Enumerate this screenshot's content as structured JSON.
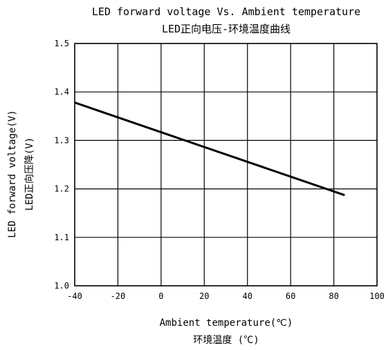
{
  "chart_data": {
    "type": "line",
    "title": "LED forward voltage Vs. Ambient temperature",
    "subtitle": "LED正向电压-环境温度曲线",
    "xlabel": "Ambient temperature(℃)",
    "xlabel_cn": "环境温度 (℃)",
    "ylabel": "LED forward voltage(V)",
    "ylabel_cn": "LED正向压降(V)",
    "xlim": [
      -40,
      100
    ],
    "ylim": [
      1.0,
      1.5
    ],
    "xticks": [
      -40,
      -20,
      0,
      20,
      40,
      60,
      80,
      100
    ],
    "yticks": [
      1.0,
      1.1,
      1.2,
      1.3,
      1.4,
      1.5
    ],
    "xtick_labels": [
      "-40",
      "-20",
      "0",
      "20",
      "40",
      "60",
      "80",
      "100"
    ],
    "ytick_labels": [
      "1.0",
      "1.1",
      "1.2",
      "1.3",
      "1.4",
      "1.5"
    ],
    "grid": true,
    "line_color": "#000000",
    "series": [
      {
        "x": [
          -40,
          85
        ],
        "y": [
          1.378,
          1.187
        ]
      }
    ]
  }
}
